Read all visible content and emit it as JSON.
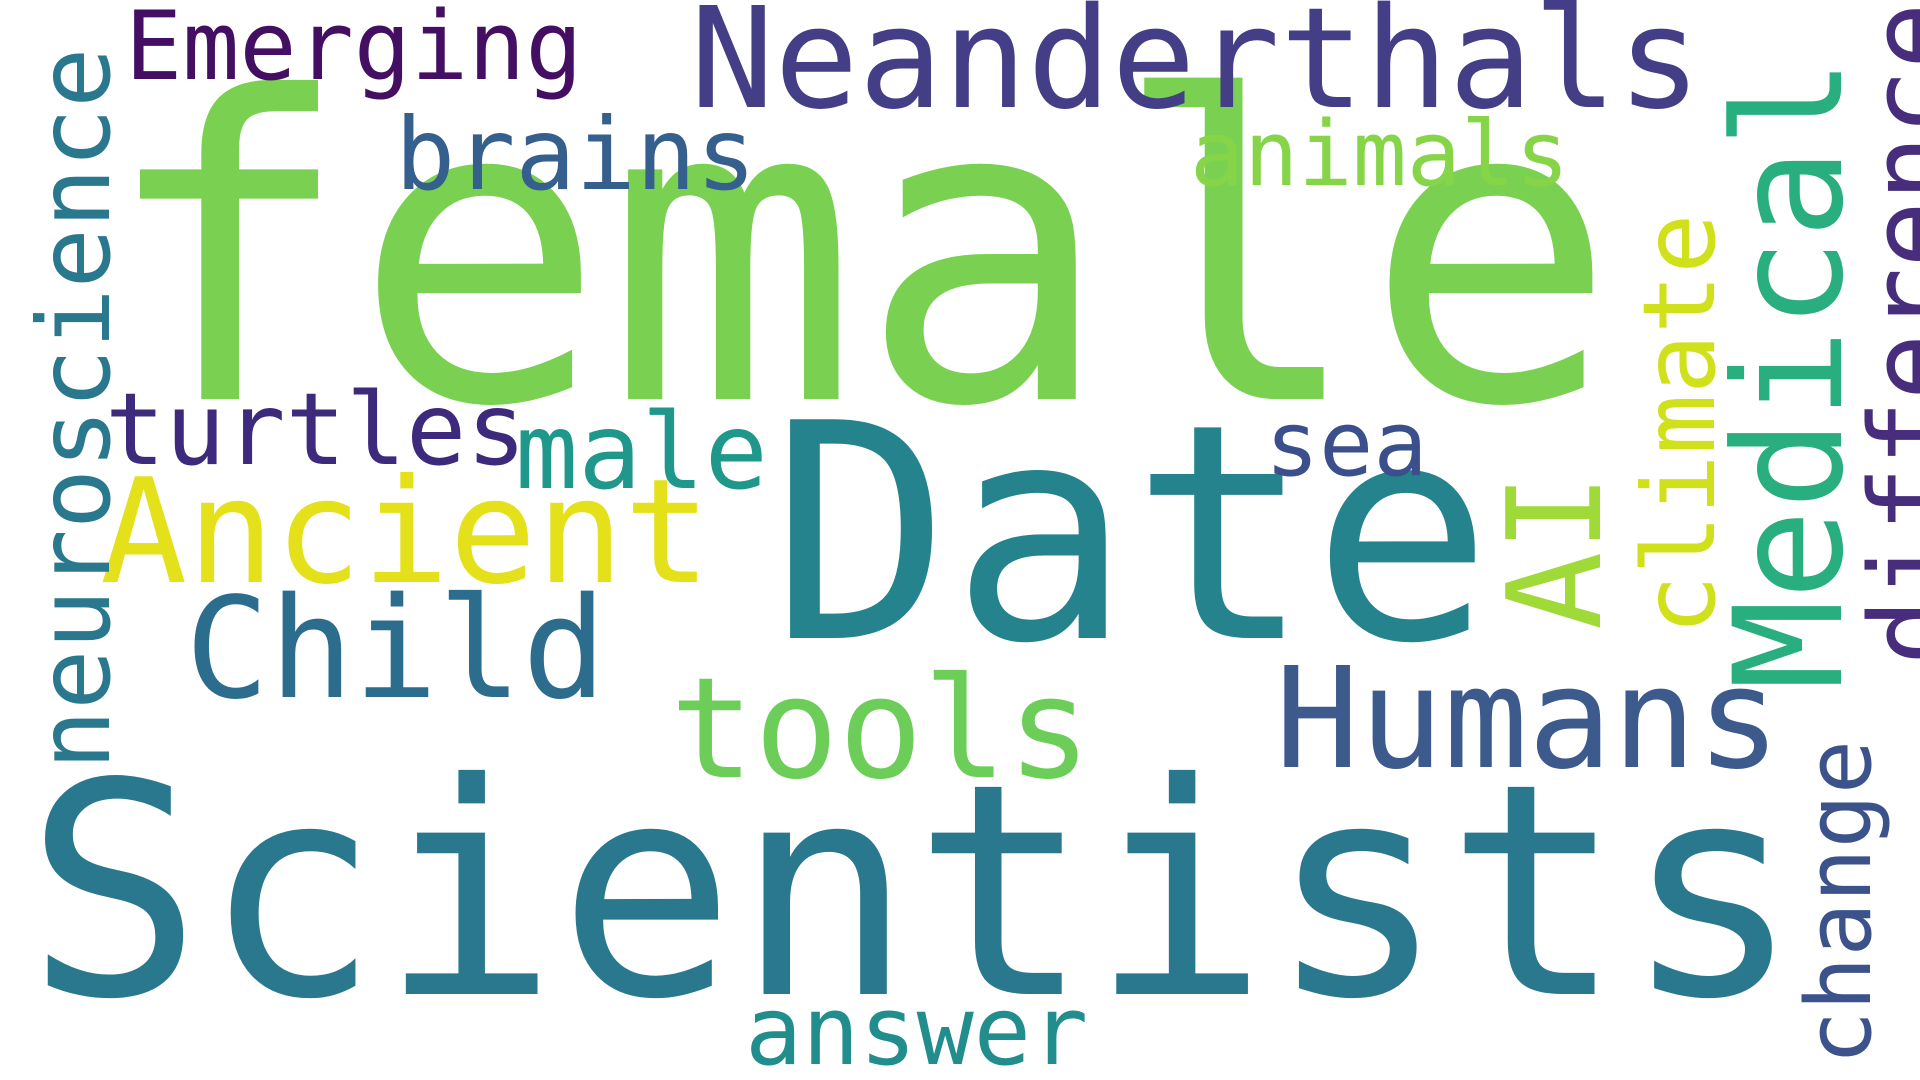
{
  "words": {
    "female": {
      "text": "female",
      "color": "#7ad151"
    },
    "scientists": {
      "text": "Scientists",
      "color": "#2a788e"
    },
    "date": {
      "text": "Date",
      "color": "#25838e"
    },
    "neanderthals": {
      "text": "Neanderthals",
      "color": "#433e85"
    },
    "emerging": {
      "text": "Emerging",
      "color": "#440f63"
    },
    "brains": {
      "text": "brains",
      "color": "#355f8d"
    },
    "animals": {
      "text": "animals",
      "color": "#86d549"
    },
    "turtles": {
      "text": "turtles",
      "color": "#3e2a7c"
    },
    "male": {
      "text": "male",
      "color": "#1f988b"
    },
    "sea": {
      "text": "sea",
      "color": "#3a4f8b"
    },
    "ancient": {
      "text": "Ancient",
      "color": "#e4e11a"
    },
    "child": {
      "text": "Child",
      "color": "#2c6d8e"
    },
    "humans": {
      "text": "Humans",
      "color": "#3c5a8c"
    },
    "tools": {
      "text": "tools",
      "color": "#6cce59"
    },
    "answer": {
      "text": "answer",
      "color": "#228d8d"
    },
    "neuroscience": {
      "text": "neuroscience",
      "color": "#2a788e"
    },
    "ai": {
      "text": "AI",
      "color": "#a0da39"
    },
    "medical": {
      "text": "Medical",
      "color": "#29af7f"
    },
    "climate": {
      "text": "climate",
      "color": "#d0e11c"
    },
    "difference": {
      "text": "difference",
      "color": "#472d7b"
    },
    "change": {
      "text": "change",
      "color": "#3b528b"
    }
  },
  "background": "#ffffff"
}
